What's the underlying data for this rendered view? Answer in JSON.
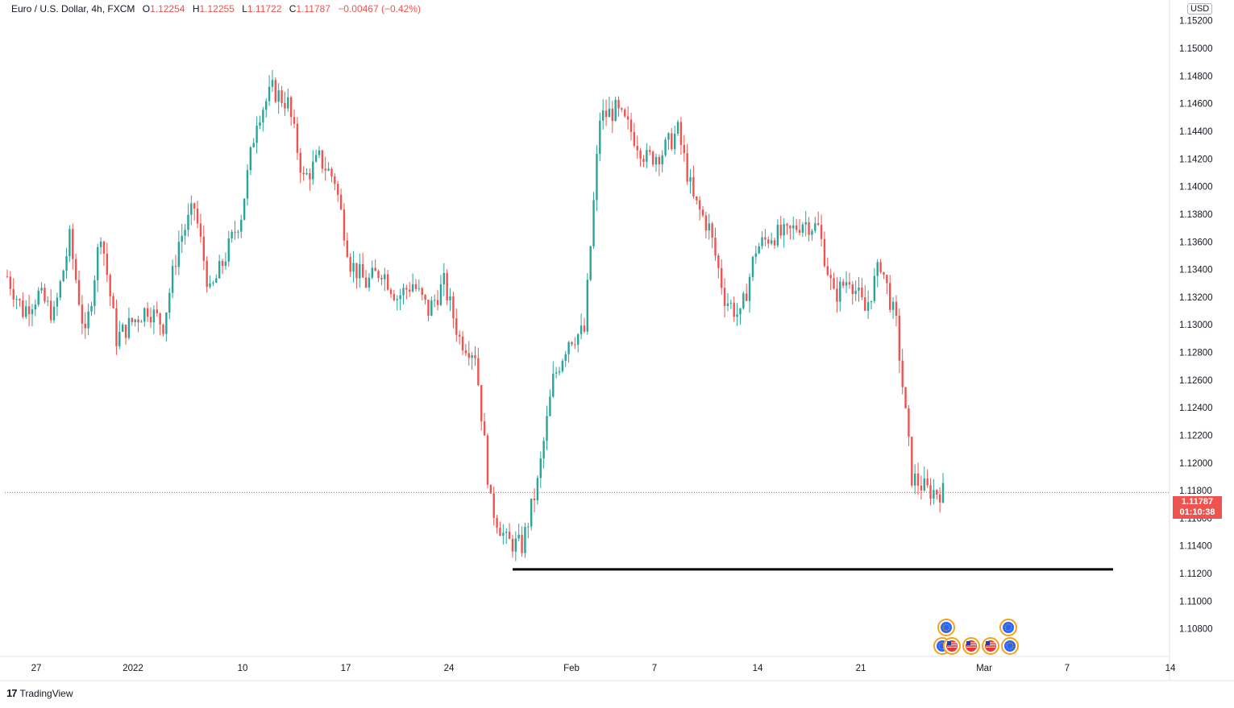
{
  "legend": {
    "symbol": "Euro / U.S. Dollar, 4h, FXCM",
    "open_label": "O",
    "open": "1.12254",
    "high_label": "H",
    "high": "1.12255",
    "low_label": "L",
    "low": "1.11722",
    "close_label": "C",
    "close": "1.11787",
    "change": "−0.00467 (−0.42%)"
  },
  "currency": "USD",
  "price_tag": {
    "price": "1.11787",
    "countdown": "01:10:38"
  },
  "brand": {
    "name": "TradingView"
  },
  "colors": {
    "up": "#26a69a",
    "down": "#ef5350",
    "support_line": "#000000"
  },
  "chart_data": {
    "type": "candlestick",
    "y_axis": {
      "min": 1.106,
      "max": 1.1535,
      "ticks": [
        "1.10800",
        "1.11000",
        "1.11200",
        "1.11400",
        "1.11600",
        "1.11800",
        "1.12000",
        "1.12200",
        "1.12400",
        "1.12600",
        "1.12800",
        "1.13000",
        "1.13200",
        "1.13400",
        "1.13600",
        "1.13800",
        "1.14000",
        "1.14200",
        "1.14400",
        "1.14600",
        "1.14800",
        "1.15000",
        "1.15200"
      ]
    },
    "x_axis": {
      "labels": [
        "27",
        "2022",
        "10",
        "17",
        "24",
        "Feb",
        "7",
        "14",
        "21",
        "Mar",
        "7",
        "14"
      ]
    },
    "last_price": 1.11787,
    "support_level": 1.1123,
    "series_points": [
      [
        "Dec 23",
        1.1335
      ],
      [
        "Dec 24",
        1.131
      ],
      [
        "Dec 27",
        1.1322
      ],
      [
        "Dec 28",
        1.1307
      ],
      [
        "Dec 29",
        1.1362
      ],
      [
        "Dec 30",
        1.129
      ],
      [
        "Dec 31",
        1.1368
      ],
      [
        "Jan 3",
        1.129
      ],
      [
        "Jan 4",
        1.1302
      ],
      [
        "Jan 5",
        1.1312
      ],
      [
        "Jan 6",
        1.13
      ],
      [
        "Jan 7",
        1.136
      ],
      [
        "Jan 9",
        1.1385
      ],
      [
        "Jan 10",
        1.1322
      ],
      [
        "Jan 11",
        1.135
      ],
      [
        "Jan 12",
        1.138
      ],
      [
        "Jan 13",
        1.145
      ],
      [
        "Jan 14",
        1.147
      ],
      [
        "Jan 15",
        1.146
      ],
      [
        "Jan 16",
        1.1405
      ],
      [
        "Jan 17",
        1.142
      ],
      [
        "Jan 18",
        1.1405
      ],
      [
        "Jan 19",
        1.1345
      ],
      [
        "Jan 20",
        1.133
      ],
      [
        "Jan 21",
        1.134
      ],
      [
        "Jan 22",
        1.132
      ],
      [
        "Jan 23",
        1.133
      ],
      [
        "Jan 24",
        1.131
      ],
      [
        "Jan 25",
        1.133
      ],
      [
        "Jan 26",
        1.129
      ],
      [
        "Jan 27",
        1.128
      ],
      [
        "Jan 28",
        1.117
      ],
      [
        "Jan 29",
        1.1143
      ],
      [
        "Jan 30",
        1.114
      ],
      [
        "Jan 31",
        1.1185
      ],
      [
        "Feb 1",
        1.126
      ],
      [
        "Feb 2",
        1.129
      ],
      [
        "Feb 3",
        1.1295
      ],
      [
        "Feb 4",
        1.145
      ],
      [
        "Feb 5",
        1.1455
      ],
      [
        "Feb 7",
        1.144
      ],
      [
        "Feb 8",
        1.142
      ],
      [
        "Feb 9",
        1.1425
      ],
      [
        "Feb 10",
        1.144
      ],
      [
        "Feb 11",
        1.139
      ],
      [
        "Feb 12",
        1.137
      ],
      [
        "Feb 13",
        1.132
      ],
      [
        "Feb 14",
        1.1305
      ],
      [
        "Feb 15",
        1.1355
      ],
      [
        "Feb 16",
        1.1365
      ],
      [
        "Feb 17",
        1.1365
      ],
      [
        "Feb 18",
        1.1375
      ],
      [
        "Feb 19",
        1.137
      ],
      [
        "Feb 20",
        1.132
      ],
      [
        "Feb 21",
        1.1335
      ],
      [
        "Feb 22",
        1.131
      ],
      [
        "Feb 23",
        1.1345
      ],
      [
        "Feb 24",
        1.13
      ],
      [
        "Feb 25",
        1.119
      ],
      [
        "Feb 26",
        1.118
      ],
      [
        "Feb 27",
        1.1179
      ]
    ],
    "event_markers": [
      {
        "currency": "EUR"
      },
      {
        "currency": "EUR"
      },
      {
        "currency": "USD"
      },
      {
        "currency": "USD"
      },
      {
        "currency": "EUR"
      },
      {
        "currency": "USD"
      },
      {
        "currency": "EUR"
      }
    ]
  }
}
